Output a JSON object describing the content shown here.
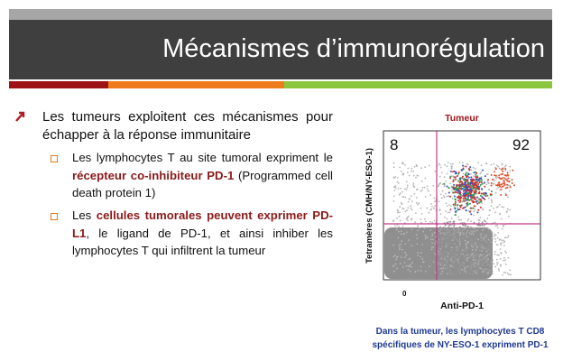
{
  "title": "Mécanismes d’immunorégulation",
  "bullets": [
    {
      "text": "Les tumeurs exploitent ces mécanismes pour échapper à la réponse immunitaire",
      "subbullets": [
        {
          "parts": [
            "Les lymphocytes T au site tumoral expriment le ",
            "récepteur co-inhibiteur PD-1",
            " (Programmed cell death protein 1)"
          ]
        },
        {
          "parts": [
            "Les ",
            "cellules tumorales peuvent exprimer PD-L1",
            ", le ligand de PD-1, et ainsi inhiber les lymphocytes T qui infiltrent la tumeur"
          ]
        }
      ]
    }
  ],
  "figure": {
    "label": "Tumeur",
    "quadrant_left": 8,
    "quadrant_right": 92,
    "y_axis_label": "Tetramères (CMH/NY-ESO-1)",
    "x_axis_label": "Anti-PD-1",
    "x_origin": "0",
    "caption": [
      "Dans la tumeur, les lymphocytes T CD8",
      "spécifiques de NY-ESO-1 expriment PD-1"
    ]
  }
}
